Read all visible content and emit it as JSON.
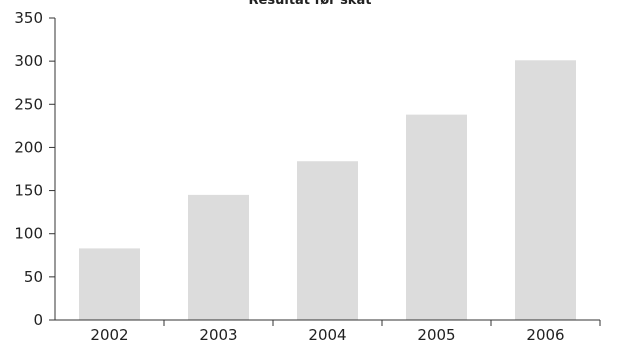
{
  "chart_data": {
    "type": "bar",
    "title": "Resultat før skat",
    "xlabel": "",
    "ylabel": "",
    "categories": [
      "2002",
      "2003",
      "2004",
      "2005",
      "2006"
    ],
    "series": [
      {
        "values": [
          83,
          145,
          184,
          238,
          301
        ]
      }
    ],
    "ylim": [
      0,
      350
    ],
    "yticks": [
      0,
      50,
      100,
      150,
      200,
      250,
      300,
      350
    ],
    "grid": false,
    "legend": "none",
    "bar_color": "#dcdcdc",
    "axis_color": "#333333"
  }
}
